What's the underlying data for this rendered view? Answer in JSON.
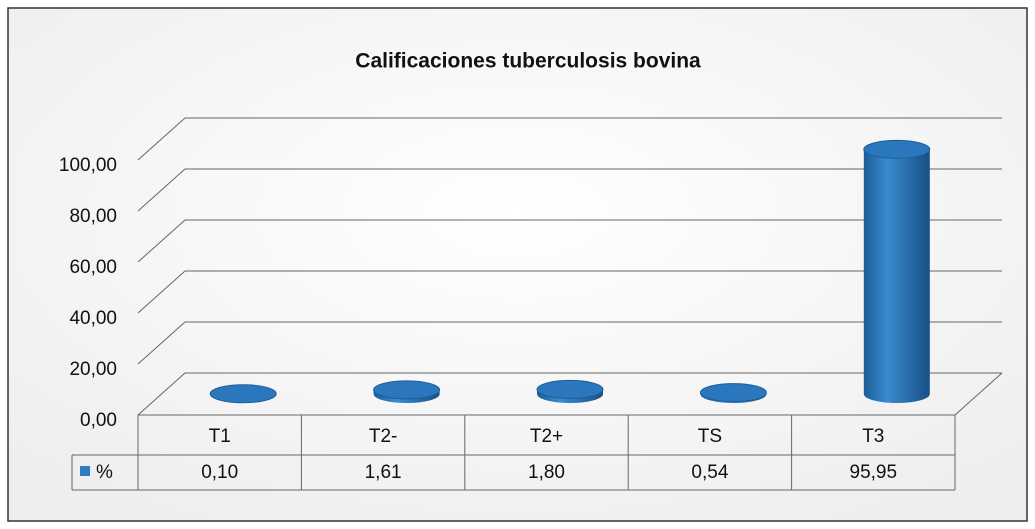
{
  "chart_data": {
    "type": "bar3d-cylinder",
    "title": "Calificaciones tuberculosis bovina",
    "categories": [
      "T1",
      "T2-",
      "T2+",
      "TS",
      "T3"
    ],
    "series": [
      {
        "name": "%",
        "color": "#2f7dc0",
        "values": [
          0.1,
          1.61,
          1.8,
          0.54,
          95.95
        ],
        "value_labels": [
          "0,10",
          "1,61",
          "1,80",
          "0,54",
          "95,95"
        ]
      }
    ],
    "ylim": [
      0,
      100
    ],
    "yticks": [
      {
        "value": 0,
        "label": "0,00"
      },
      {
        "value": 20,
        "label": "20,00"
      },
      {
        "value": 40,
        "label": "40,00"
      },
      {
        "value": 60,
        "label": "60,00"
      },
      {
        "value": 80,
        "label": "80,00"
      },
      {
        "value": 100,
        "label": "100,00"
      }
    ],
    "grid": true,
    "legend": "table"
  }
}
